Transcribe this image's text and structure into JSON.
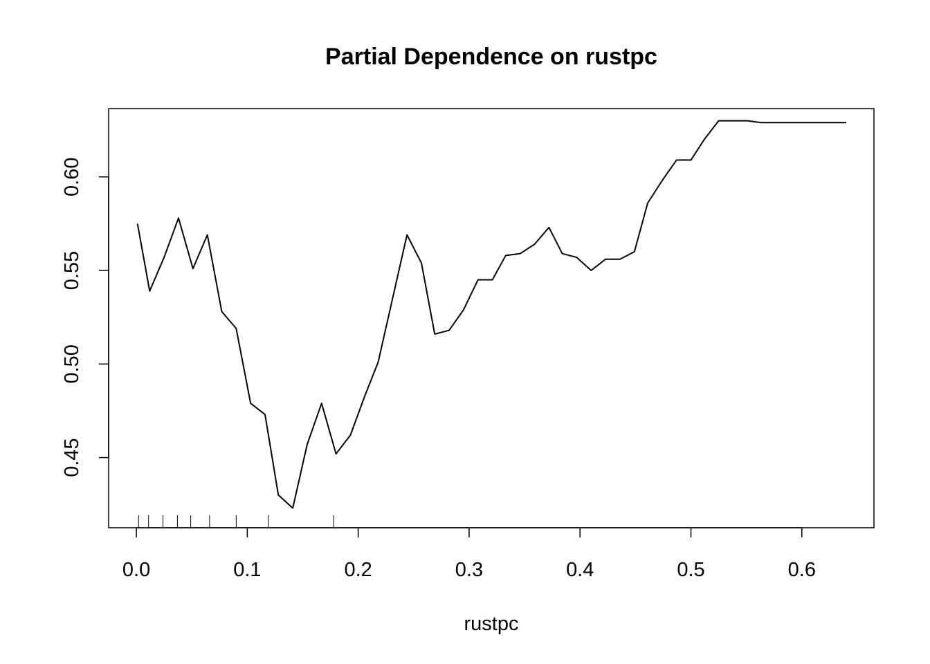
{
  "chart_data": {
    "type": "line",
    "title": "Partial Dependence on rustpc",
    "xlabel": "rustpc",
    "ylabel": "",
    "xlim": [
      -0.025,
      0.665
    ],
    "ylim": [
      0.4125,
      0.6365
    ],
    "x_ticks": [
      0.0,
      0.1,
      0.2,
      0.3,
      0.4,
      0.5,
      0.6
    ],
    "x_tick_labels": [
      "0.0",
      "0.1",
      "0.2",
      "0.3",
      "0.4",
      "0.5",
      "0.6"
    ],
    "y_ticks": [
      0.45,
      0.5,
      0.55,
      0.6
    ],
    "y_tick_labels": [
      "0.45",
      "0.50",
      "0.55",
      "0.60"
    ],
    "grid": false,
    "line_color": "#000000",
    "series": [
      {
        "x": [
          0.001,
          0.012,
          0.025,
          0.038,
          0.051,
          0.064,
          0.077,
          0.09,
          0.103,
          0.116,
          0.128,
          0.141,
          0.154,
          0.167,
          0.18,
          0.193,
          0.206,
          0.218,
          0.231,
          0.244,
          0.257,
          0.269,
          0.282,
          0.295,
          0.308,
          0.321,
          0.333,
          0.346,
          0.359,
          0.372,
          0.384,
          0.397,
          0.41,
          0.423,
          0.436,
          0.449,
          0.461,
          0.474,
          0.487,
          0.5,
          0.512,
          0.525,
          0.538,
          0.551,
          0.563,
          0.576,
          0.589,
          0.602,
          0.615,
          0.627,
          0.64
        ],
        "y": [
          0.575,
          0.539,
          0.557,
          0.578,
          0.551,
          0.569,
          0.528,
          0.519,
          0.479,
          0.473,
          0.43,
          0.423,
          0.457,
          0.479,
          0.452,
          0.462,
          0.483,
          0.501,
          0.535,
          0.569,
          0.554,
          0.516,
          0.518,
          0.529,
          0.545,
          0.545,
          0.558,
          0.559,
          0.564,
          0.573,
          0.559,
          0.557,
          0.55,
          0.556,
          0.556,
          0.56,
          0.586,
          0.598,
          0.609,
          0.609,
          0.62,
          0.63,
          0.63,
          0.63,
          0.629,
          0.629,
          0.629,
          0.629,
          0.629,
          0.629,
          0.629
        ]
      }
    ],
    "rug": [
      0.002,
      0.011,
      0.024,
      0.037,
      0.049,
      0.066,
      0.09,
      0.119,
      0.178
    ]
  }
}
